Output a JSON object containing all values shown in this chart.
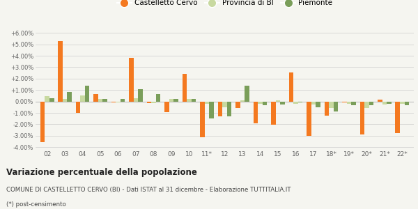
{
  "categories": [
    "02",
    "03",
    "04",
    "05",
    "06",
    "07",
    "08",
    "09",
    "10",
    "11*",
    "12",
    "13",
    "14",
    "15",
    "16",
    "17",
    "18*",
    "19*",
    "20*",
    "21*",
    "22*"
  ],
  "castelletto": [
    -3.55,
    5.3,
    -1.0,
    0.65,
    -0.1,
    3.8,
    -0.15,
    -0.95,
    2.4,
    -3.15,
    -1.3,
    -0.55,
    -1.9,
    -2.05,
    2.55,
    -3.0,
    -1.25,
    -0.1,
    -2.9,
    0.15,
    -2.75
  ],
  "provincia_bi": [
    0.45,
    0.25,
    0.55,
    0.2,
    -0.1,
    0.3,
    -0.15,
    0.25,
    0.2,
    -0.2,
    -0.5,
    0.1,
    -0.2,
    0.1,
    -0.2,
    -0.25,
    -0.55,
    -0.2,
    -0.55,
    -0.25,
    -0.2
  ],
  "piemonte": [
    0.3,
    0.85,
    1.4,
    0.25,
    0.2,
    1.05,
    0.65,
    0.2,
    0.2,
    -1.5,
    -1.3,
    1.4,
    -0.3,
    -0.25,
    -0.1,
    -0.5,
    -0.9,
    -0.35,
    -0.35,
    -0.2,
    -0.35
  ],
  "color_castelletto": "#f47920",
  "color_provincia": "#c8d9a0",
  "color_piemonte": "#7a9e5a",
  "background_color": "#f5f5f0",
  "title": "Variazione percentuale della popolazione",
  "subtitle": "COMUNE DI CASTELLETTO CERVO (BI) - Dati ISTAT al 31 dicembre - Elaborazione TUTTITALIA.IT",
  "footnote": "(*) post-censimento",
  "legend_labels": [
    "Castelletto Cervo",
    "Provincia di BI",
    "Piemonte"
  ],
  "ylim": [
    -4.2,
    6.5
  ],
  "yticks": [
    -4.0,
    -3.0,
    -2.0,
    -1.0,
    0.0,
    1.0,
    2.0,
    3.0,
    4.0,
    5.0,
    6.0
  ],
  "bar_width": 0.26
}
